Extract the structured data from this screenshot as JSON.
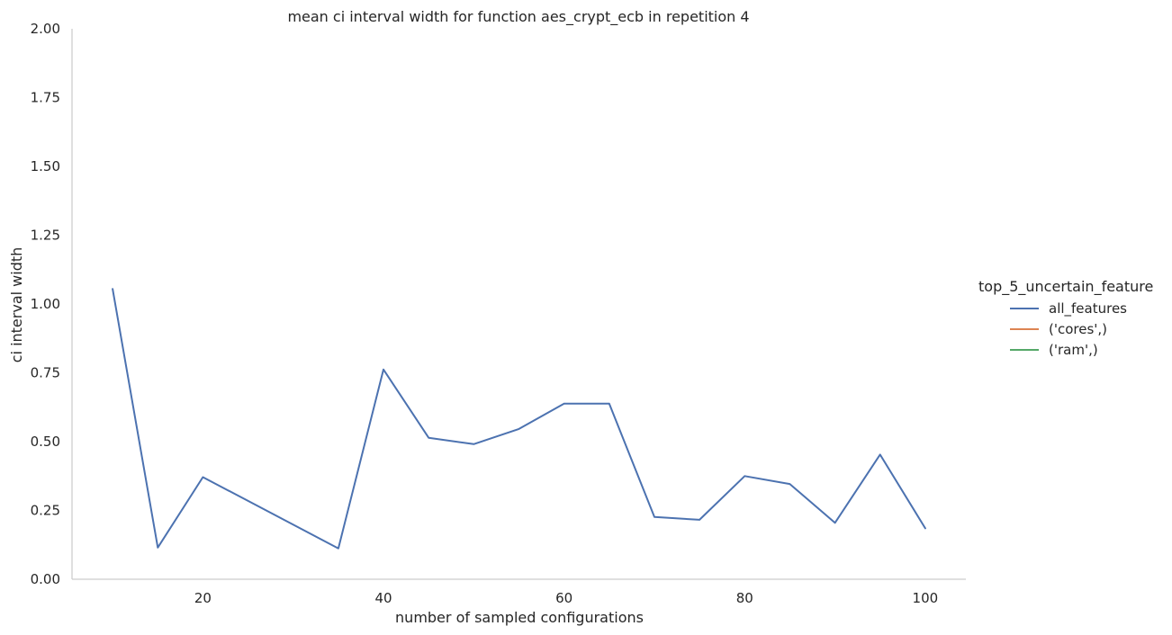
{
  "chart_data": {
    "type": "line",
    "title": "mean ci interval width for function aes_crypt_ecb in repetition 4",
    "xlabel": "number of sampled configurations",
    "ylabel": "ci interval width",
    "xlim": [
      5.5,
      104.5
    ],
    "ylim": [
      0,
      2
    ],
    "x_ticks": [
      20,
      40,
      60,
      80,
      100
    ],
    "x_tick_labels": [
      "20",
      "40",
      "60",
      "80",
      "100"
    ],
    "y_ticks": [
      0,
      0.25,
      0.5,
      0.75,
      1.0,
      1.25,
      1.5,
      1.75,
      2.0
    ],
    "y_tick_labels": [
      "0.00",
      "0.25",
      "0.50",
      "0.75",
      "1.00",
      "1.25",
      "1.50",
      "1.75",
      "2.00"
    ],
    "grid": false,
    "legend": {
      "title": "top_5_uncertain_feature",
      "placement": "right"
    },
    "series": [
      {
        "name": "all_features",
        "color": "#4c72b0",
        "x": [
          10,
          15,
          20,
          35,
          40,
          45,
          50,
          55,
          60,
          65,
          70,
          75,
          80,
          85,
          90,
          95,
          100
        ],
        "values": [
          1.055,
          0.115,
          0.371,
          0.112,
          0.762,
          0.514,
          0.491,
          0.546,
          0.638,
          0.638,
          0.226,
          0.216,
          0.375,
          0.346,
          0.205,
          0.453,
          0.185
        ]
      },
      {
        "name": "('cores',)",
        "color": "#dd8452",
        "x": [],
        "values": []
      },
      {
        "name": "('ram',)",
        "color": "#55a868",
        "x": [],
        "values": []
      }
    ]
  }
}
